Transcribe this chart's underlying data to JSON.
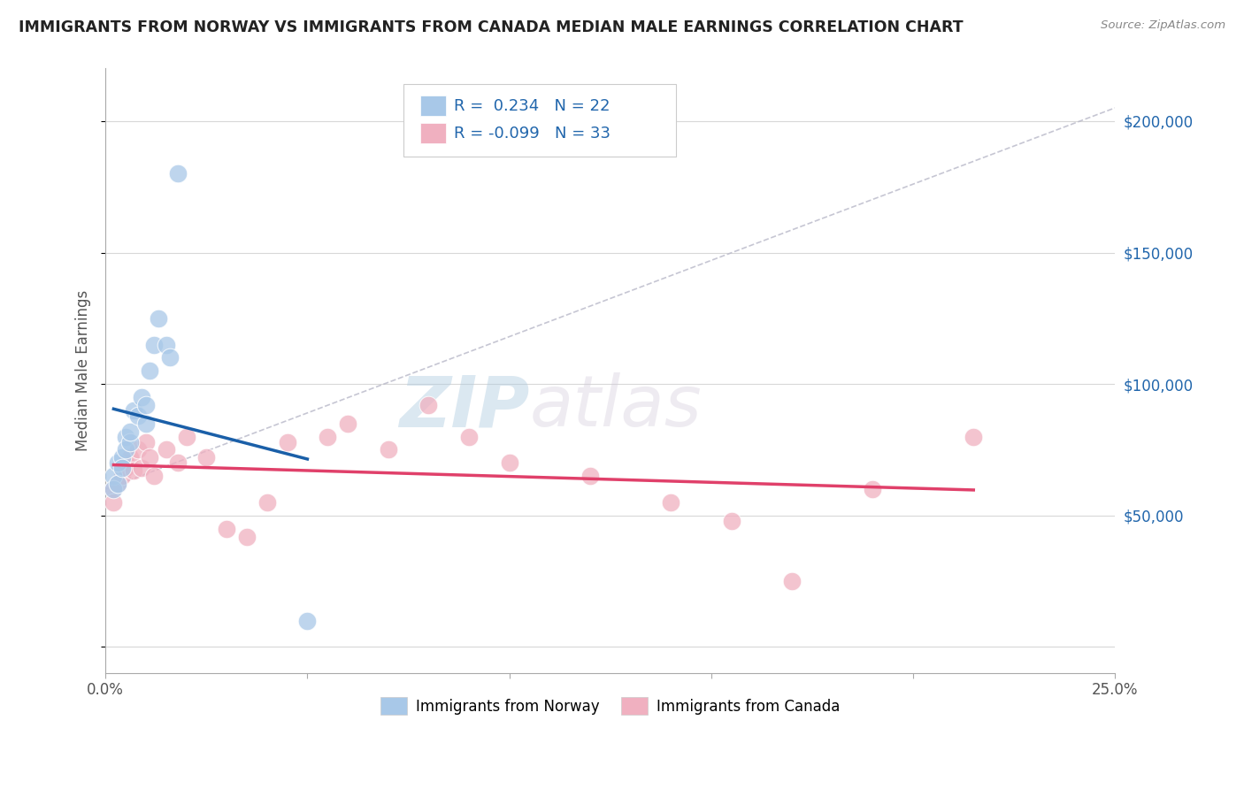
{
  "title": "IMMIGRANTS FROM NORWAY VS IMMIGRANTS FROM CANADA MEDIAN MALE EARNINGS CORRELATION CHART",
  "source": "Source: ZipAtlas.com",
  "ylabel": "Median Male Earnings",
  "xlim": [
    0.0,
    0.25
  ],
  "ylim": [
    -10000,
    220000
  ],
  "xticks": [
    0.0,
    0.05,
    0.1,
    0.15,
    0.2,
    0.25
  ],
  "xticklabels": [
    "0.0%",
    "",
    "",
    "",
    "",
    "25.0%"
  ],
  "ytick_positions": [
    0,
    50000,
    100000,
    150000,
    200000
  ],
  "ytick_labels": [
    "",
    "$50,000",
    "$100,000",
    "$150,000",
    "$200,000"
  ],
  "norway_color": "#a8c8e8",
  "norway_line_color": "#1a5fa8",
  "canada_color": "#f0b0c0",
  "canada_line_color": "#e0406a",
  "trend_color": "#b8b8c8",
  "norway_R": 0.234,
  "norway_N": 22,
  "canada_R": -0.099,
  "canada_N": 33,
  "norway_x": [
    0.002,
    0.002,
    0.003,
    0.003,
    0.004,
    0.004,
    0.005,
    0.005,
    0.006,
    0.006,
    0.007,
    0.008,
    0.009,
    0.01,
    0.01,
    0.011,
    0.012,
    0.013,
    0.015,
    0.016,
    0.018,
    0.05
  ],
  "norway_y": [
    65000,
    60000,
    70000,
    62000,
    72000,
    68000,
    80000,
    75000,
    78000,
    82000,
    90000,
    88000,
    95000,
    85000,
    92000,
    105000,
    115000,
    125000,
    115000,
    110000,
    180000,
    10000
  ],
  "canada_x": [
    0.002,
    0.002,
    0.003,
    0.004,
    0.005,
    0.005,
    0.006,
    0.007,
    0.008,
    0.009,
    0.01,
    0.011,
    0.012,
    0.015,
    0.018,
    0.02,
    0.025,
    0.03,
    0.035,
    0.04,
    0.045,
    0.055,
    0.06,
    0.07,
    0.08,
    0.09,
    0.1,
    0.12,
    0.14,
    0.155,
    0.17,
    0.19,
    0.215
  ],
  "canada_y": [
    60000,
    55000,
    62000,
    65000,
    70000,
    68000,
    72000,
    67000,
    75000,
    68000,
    78000,
    72000,
    65000,
    75000,
    70000,
    80000,
    72000,
    45000,
    42000,
    55000,
    78000,
    80000,
    85000,
    75000,
    92000,
    80000,
    70000,
    65000,
    55000,
    48000,
    25000,
    60000,
    80000
  ],
  "watermark_zip": "ZIP",
  "watermark_atlas": "atlas",
  "background_color": "#ffffff",
  "grid_color": "#d8d8d8",
  "legend_color": "#2166ac"
}
